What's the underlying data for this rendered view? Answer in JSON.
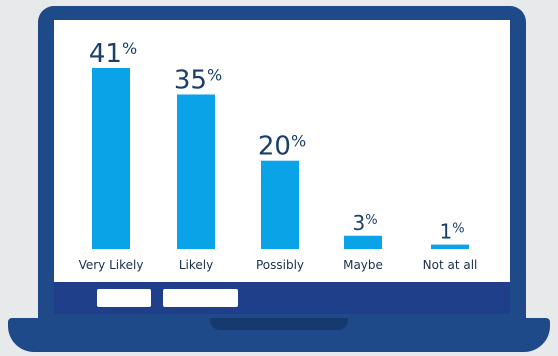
{
  "chart_data": {
    "type": "bar",
    "categories": [
      "Very Likely",
      "Likely",
      "Possibly",
      "Maybe",
      "Not at all"
    ],
    "values": [
      41,
      35,
      20,
      3,
      1
    ],
    "value_labels": [
      "41",
      "35",
      "20",
      "3",
      "1"
    ],
    "unit": "%",
    "title": "",
    "xlabel": "",
    "ylabel": "",
    "ylim": [
      0,
      41
    ]
  },
  "colors": {
    "bar": "#0aa3e8",
    "laptop_frame": "#1f4a8a",
    "taskbar": "#1f3f8a",
    "value_text": "#1a3f6b",
    "category_text": "#1a2e4a"
  },
  "taskbar": {
    "buttons": [
      "",
      ""
    ]
  }
}
